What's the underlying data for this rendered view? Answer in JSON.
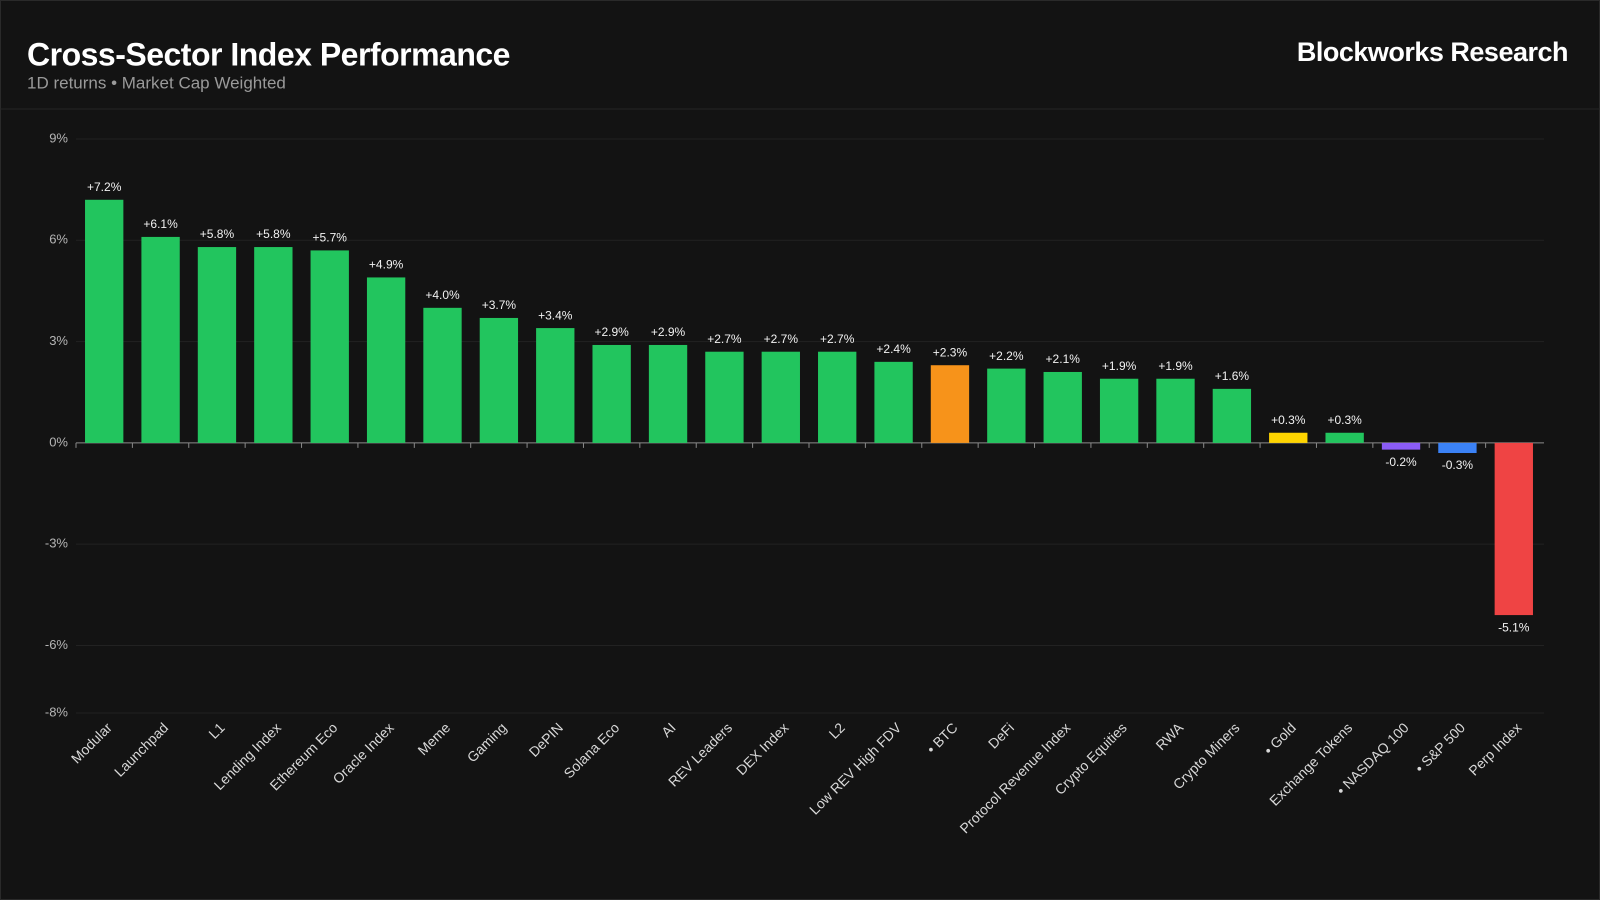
{
  "chart_data": {
    "type": "bar",
    "title": "Cross-Sector Index Performance",
    "subtitle": "1D returns • Market Cap Weighted",
    "brand": "Blockworks Research",
    "categories": [
      "Modular",
      "Launchpad",
      "L1",
      "Lending Index",
      "Ethereum Eco",
      "Oracle Index",
      "Meme",
      "Gaming",
      "DePIN",
      "Solana Eco",
      "AI",
      "REV Leaders",
      "DEX Index",
      "L2",
      "Low REV High FDV",
      "• BTC",
      "DeFi",
      "Protocol Revenue Index",
      "Crypto Equities",
      "RWA",
      "Crypto Miners",
      "• Gold",
      "Exchange Tokens",
      "• NASDAQ 100",
      "• S&P 500",
      "Perp Index"
    ],
    "values": [
      7.2,
      6.1,
      5.8,
      5.8,
      5.7,
      4.9,
      4.0,
      3.7,
      3.4,
      2.9,
      2.9,
      2.7,
      2.7,
      2.7,
      2.4,
      2.3,
      2.2,
      2.1,
      1.9,
      1.9,
      1.6,
      0.3,
      0.3,
      -0.2,
      -0.3,
      -5.1
    ],
    "value_labels": [
      "+7.2%",
      "+6.1%",
      "+5.8%",
      "+5.8%",
      "+5.7%",
      "+4.9%",
      "+4.0%",
      "+3.7%",
      "+3.4%",
      "+2.9%",
      "+2.9%",
      "+2.7%",
      "+2.7%",
      "+2.7%",
      "+2.4%",
      "+2.3%",
      "+2.2%",
      "+2.1%",
      "+1.9%",
      "+1.9%",
      "+1.6%",
      "+0.3%",
      "+0.3%",
      "-0.2%",
      "-0.3%",
      "-5.1%"
    ],
    "colors": [
      "#22c55e",
      "#22c55e",
      "#22c55e",
      "#22c55e",
      "#22c55e",
      "#22c55e",
      "#22c55e",
      "#22c55e",
      "#22c55e",
      "#22c55e",
      "#22c55e",
      "#22c55e",
      "#22c55e",
      "#22c55e",
      "#22c55e",
      "#f7931a",
      "#22c55e",
      "#22c55e",
      "#22c55e",
      "#22c55e",
      "#22c55e",
      "#ffd500",
      "#22c55e",
      "#8b5cf6",
      "#3b82f6",
      "#ef4444"
    ],
    "ylim": [
      -8,
      9
    ],
    "yticks": [
      {
        "value": 9,
        "label": "9%"
      },
      {
        "value": 6,
        "label": "6%"
      },
      {
        "value": 3,
        "label": "3%"
      },
      {
        "value": 0,
        "label": "0%"
      },
      {
        "value": -3,
        "label": "-3%"
      },
      {
        "value": -6,
        "label": "-6%"
      },
      {
        "value": -8,
        "label": "-8%"
      }
    ],
    "grid": true
  }
}
